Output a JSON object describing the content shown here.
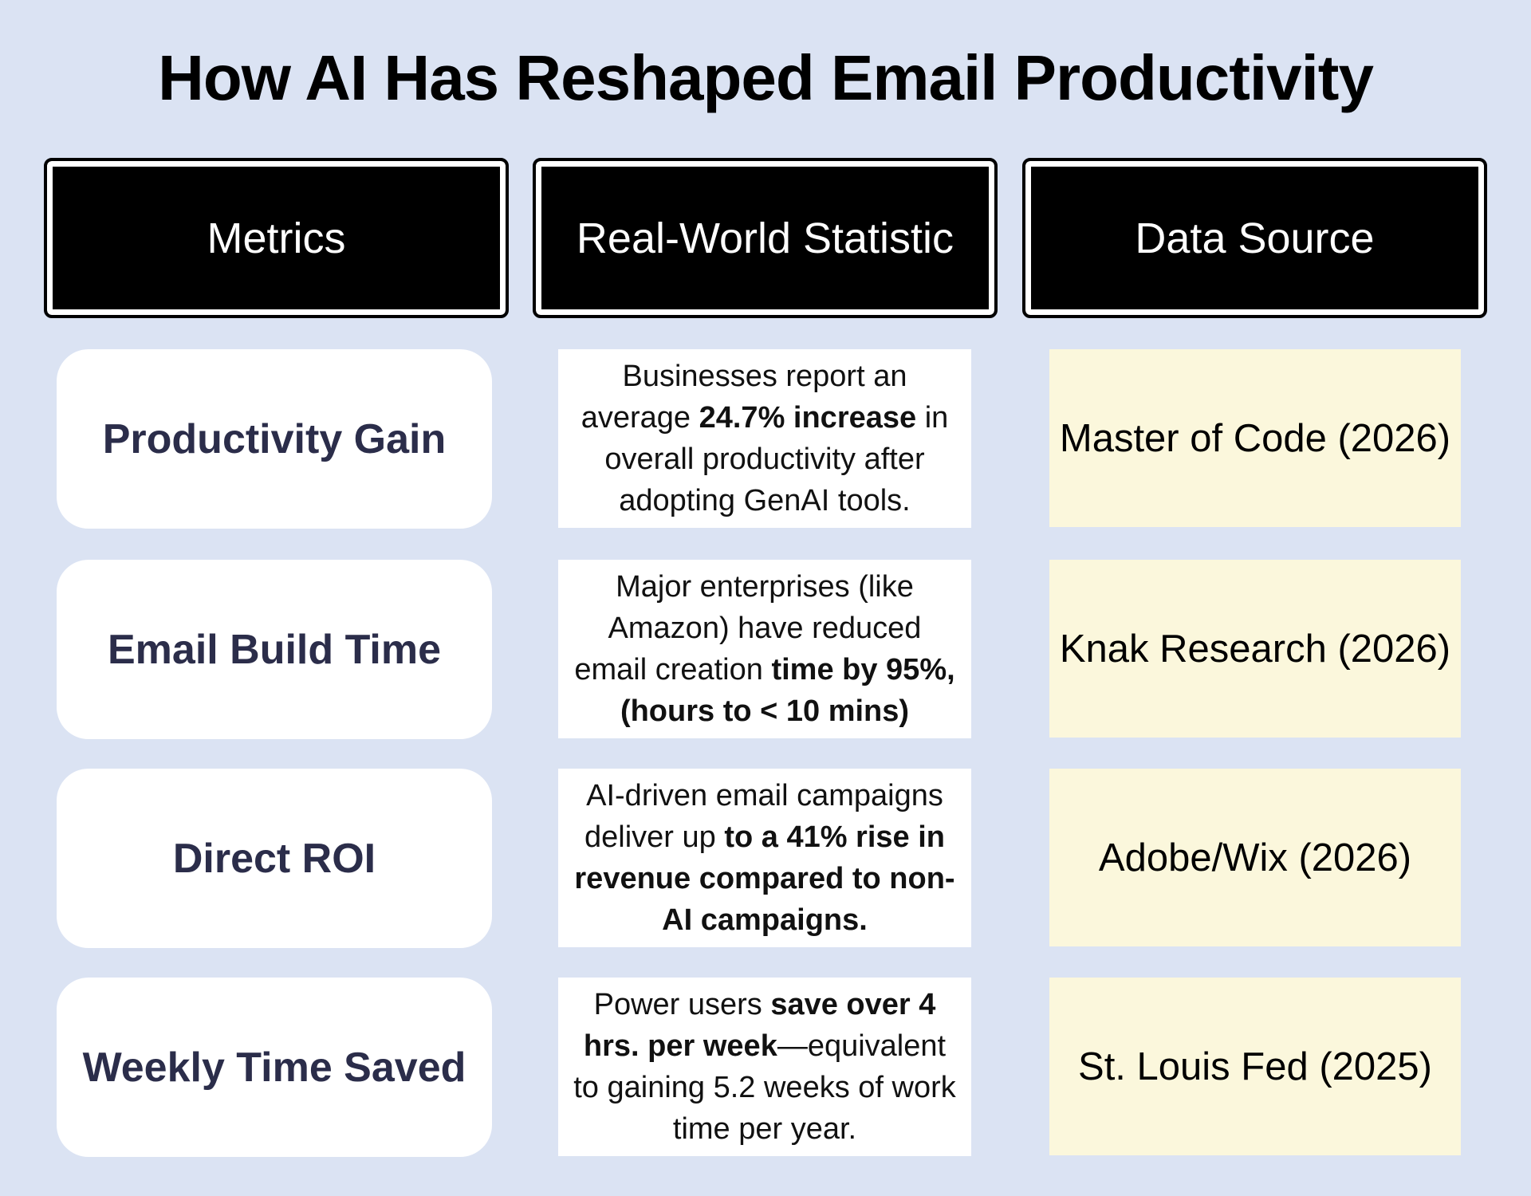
{
  "title": "How AI Has Reshaped Email Productivity",
  "headers": [
    "Metrics",
    "Real-World Statistic",
    "Data Source"
  ],
  "rows": [
    {
      "metric": "Productivity Gain",
      "statistic": [
        {
          "text": "Businesses report an average ",
          "bold": false
        },
        {
          "text": "24.7% increase",
          "bold": true
        },
        {
          "text": " in overall productivity after adopting GenAI tools.",
          "bold": false
        }
      ],
      "source": "Master of Code (2026)"
    },
    {
      "metric": "Email Build Time",
      "statistic": [
        {
          "text": "Major enterprises (like Amazon) have reduced email creation ",
          "bold": false
        },
        {
          "text": "time by 95%, (hours to < 10 mins)",
          "bold": true
        }
      ],
      "source": "Knak Research (2026)"
    },
    {
      "metric": "Direct ROI",
      "statistic": [
        {
          "text": "AI-driven email campaigns deliver up ",
          "bold": false
        },
        {
          "text": "to a 41% rise in revenue compared to non-AI campaigns.",
          "bold": true
        }
      ],
      "source": "Adobe/Wix (2026)"
    },
    {
      "metric": "Weekly Time Saved",
      "statistic": [
        {
          "text": "Power users ",
          "bold": false
        },
        {
          "text": "save over 4 hrs. per week",
          "bold": true
        },
        {
          "text": "—equivalent to gaining 5.2 weeks of work time per year.",
          "bold": false
        }
      ],
      "source": "St. Louis Fed (2025)"
    }
  ]
}
